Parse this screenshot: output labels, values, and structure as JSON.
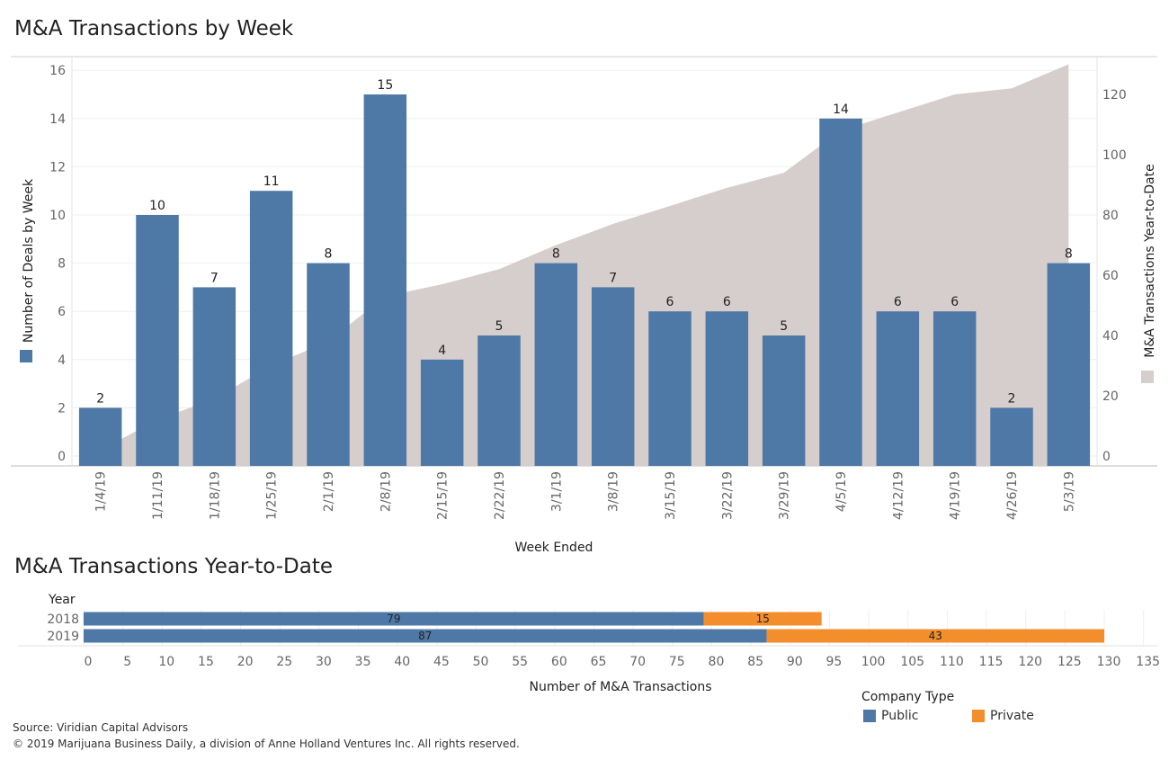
{
  "titles": {
    "weekly": "M&A Transactions by Week",
    "ytd": "M&A Transactions Year-to-Date"
  },
  "colors": {
    "public": "#4e79a7",
    "private": "#f28e2b",
    "area": "#d5cecc"
  },
  "chart_data": [
    {
      "type": "bar",
      "title": "M&A Transactions by Week",
      "xlabel": "Week Ended",
      "ylabel": "Number of Deals by Week",
      "y2label": "M&A Transactions Year-to-Date",
      "categories": [
        "1/4/19",
        "1/11/19",
        "1/18/19",
        "1/25/19",
        "2/1/19",
        "2/8/19",
        "2/15/19",
        "2/22/19",
        "3/1/19",
        "3/8/19",
        "3/15/19",
        "3/22/19",
        "3/29/19",
        "4/5/19",
        "4/12/19",
        "4/19/19",
        "4/26/19",
        "5/3/19"
      ],
      "series": [
        {
          "name": "Number of Deals by Week",
          "type": "bar",
          "values": [
            2,
            10,
            7,
            11,
            8,
            15,
            4,
            5,
            8,
            7,
            6,
            6,
            5,
            14,
            6,
            6,
            2,
            8
          ]
        },
        {
          "name": "M&A Transactions Year-to-Date",
          "type": "area",
          "axis": "right",
          "values": [
            2,
            12,
            19,
            30,
            38,
            53,
            57,
            62,
            70,
            77,
            83,
            89,
            94,
            108,
            114,
            120,
            122,
            130
          ]
        }
      ],
      "ylim": [
        0,
        17
      ],
      "y2lim": [
        0,
        136
      ],
      "yticks": [
        0,
        2,
        4,
        6,
        8,
        10,
        12,
        14,
        16
      ],
      "y2ticks": [
        0,
        20,
        40,
        60,
        80,
        100,
        120
      ],
      "grid": true
    },
    {
      "type": "bar",
      "orientation": "horizontal",
      "stacked": true,
      "title": "M&A Transactions Year-to-Date",
      "ylabel": "Year",
      "xlabel": "Number of M&A Transactions",
      "categories": [
        "2018",
        "2019"
      ],
      "series": [
        {
          "name": "Public",
          "values": [
            79,
            87
          ]
        },
        {
          "name": "Private",
          "values": [
            15,
            43
          ]
        }
      ],
      "xlim": [
        0,
        135
      ],
      "xticks": [
        0,
        5,
        10,
        15,
        20,
        25,
        30,
        35,
        40,
        45,
        50,
        55,
        60,
        65,
        70,
        75,
        80,
        85,
        90,
        95,
        100,
        105,
        110,
        115,
        120,
        125,
        130,
        135
      ],
      "legend_title": "Company Type",
      "legend_position": "bottom-right"
    }
  ],
  "legend": {
    "title": "Company Type",
    "public": "Public",
    "private": "Private"
  },
  "footer": {
    "source": "Source: Viridian Capital Advisors",
    "copyright": "© 2019 Marijuana Business Daily, a division of Anne Holland Ventures Inc. All rights reserved."
  }
}
